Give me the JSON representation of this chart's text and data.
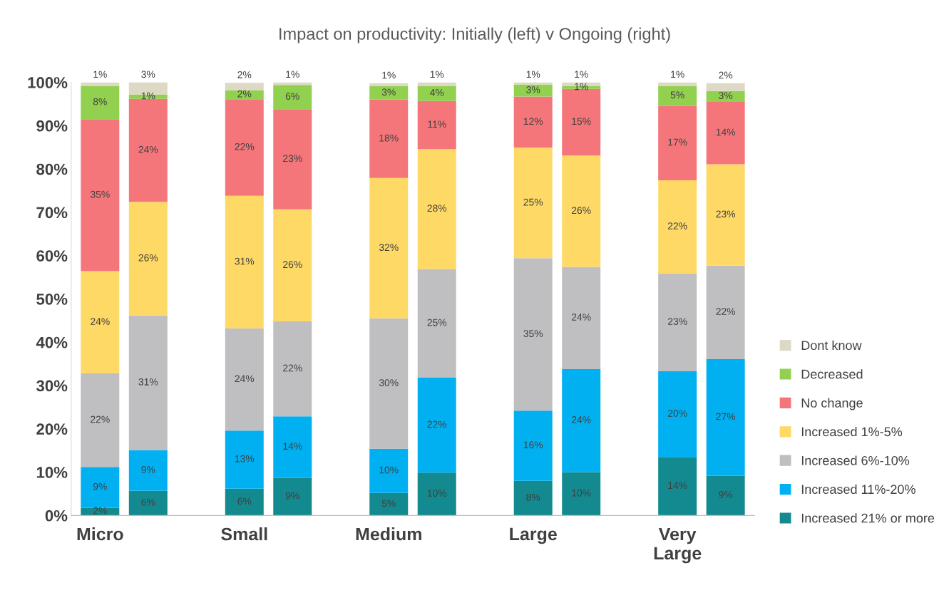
{
  "chart_data": {
    "type": "bar",
    "stacked": true,
    "title": "Impact on productivity: Initially (left) v Ongoing (right)",
    "categories": [
      "Micro",
      null,
      null,
      "Small",
      null,
      null,
      "Medium",
      null,
      null,
      "Large",
      null,
      null,
      "Very\nLarge",
      null
    ],
    "ylim": [
      0,
      100
    ],
    "yticks": [
      {
        "value": 0,
        "label": "0%"
      },
      {
        "value": 10,
        "label": "10%"
      },
      {
        "value": 20,
        "label": "20%"
      },
      {
        "value": 30,
        "label": "30%"
      },
      {
        "value": 40,
        "label": "40%"
      },
      {
        "value": 50,
        "label": "50%"
      },
      {
        "value": 60,
        "label": "60%"
      },
      {
        "value": 70,
        "label": "70%"
      },
      {
        "value": 80,
        "label": "80%"
      },
      {
        "value": 90,
        "label": "90%"
      },
      {
        "value": 100,
        "label": "100%"
      }
    ],
    "grid": false,
    "legend": "right",
    "series": [
      {
        "name": "Increased 21% or more",
        "color": "#138a8f",
        "values": [
          1.8,
          5.7,
          null,
          6.2,
          8.7,
          null,
          5.2,
          9.9,
          null,
          8.0,
          10.0,
          null,
          13.5,
          9.2
        ],
        "value_labels": [
          "2%",
          "6%",
          null,
          "6%",
          "9%",
          null,
          "5%",
          "10%",
          null,
          "8%",
          "10%",
          null,
          "14%",
          "9%"
        ]
      },
      {
        "name": "Increased 11%-20%",
        "color": "#00b0f0",
        "values": [
          9.4,
          9.4,
          null,
          13.4,
          14.2,
          null,
          10.2,
          21.9,
          null,
          16.2,
          23.8,
          null,
          19.8,
          26.9
        ],
        "value_labels": [
          "9%",
          "9%",
          null,
          "13%",
          "14%",
          null,
          "10%",
          "22%",
          null,
          "16%",
          "24%",
          null,
          "20%",
          "27%"
        ]
      },
      {
        "name": "Increased 6%-10%",
        "color": "#bfbfc1",
        "values": [
          21.6,
          31.1,
          null,
          23.6,
          21.9,
          null,
          30.1,
          25.1,
          null,
          35.2,
          23.6,
          null,
          22.6,
          21.6
        ],
        "value_labels": [
          "22%",
          "31%",
          null,
          "24%",
          "22%",
          null,
          "30%",
          "25%",
          null,
          "35%",
          "24%",
          null,
          "23%",
          "22%"
        ]
      },
      {
        "name": "Increased 1%-5%",
        "color": "#ffd966",
        "values": [
          23.6,
          26.2,
          null,
          30.6,
          25.9,
          null,
          32.4,
          27.7,
          null,
          25.5,
          25.7,
          null,
          21.5,
          23.4
        ],
        "value_labels": [
          "24%",
          "26%",
          null,
          "31%",
          "26%",
          null,
          "32%",
          "28%",
          null,
          "25%",
          "26%",
          null,
          "22%",
          "23%"
        ]
      },
      {
        "name": "No change",
        "color": "#f4767a",
        "values": [
          35.1,
          23.8,
          null,
          22.3,
          23.1,
          null,
          18.1,
          11.1,
          null,
          11.8,
          15.4,
          null,
          17.2,
          14.4
        ],
        "value_labels": [
          "35%",
          "24%",
          null,
          "22%",
          "23%",
          null,
          "18%",
          "11%",
          null,
          "12%",
          "15%",
          null,
          "17%",
          "14%"
        ]
      },
      {
        "name": "Decreased",
        "color": "#92d050",
        "values": [
          7.7,
          1.0,
          null,
          2.1,
          5.6,
          null,
          3.1,
          3.5,
          null,
          2.8,
          0.7,
          null,
          4.6,
          2.5
        ],
        "value_labels": [
          "8%",
          "1%",
          null,
          "2%",
          "6%",
          null,
          "3%",
          "4%",
          null,
          "3%",
          "1%",
          null,
          "5%",
          "3%"
        ]
      },
      {
        "name": "Dont know",
        "color": "#ddd9c4",
        "values": [
          0.8,
          2.8,
          null,
          1.7,
          0.6,
          null,
          0.7,
          0.8,
          null,
          0.5,
          0.8,
          null,
          0.8,
          1.8
        ],
        "value_labels": [
          "1%",
          "3%",
          null,
          "2%",
          "1%",
          null,
          "1%",
          "1%",
          null,
          "1%",
          "1%",
          null,
          "1%",
          "2%"
        ]
      }
    ]
  }
}
